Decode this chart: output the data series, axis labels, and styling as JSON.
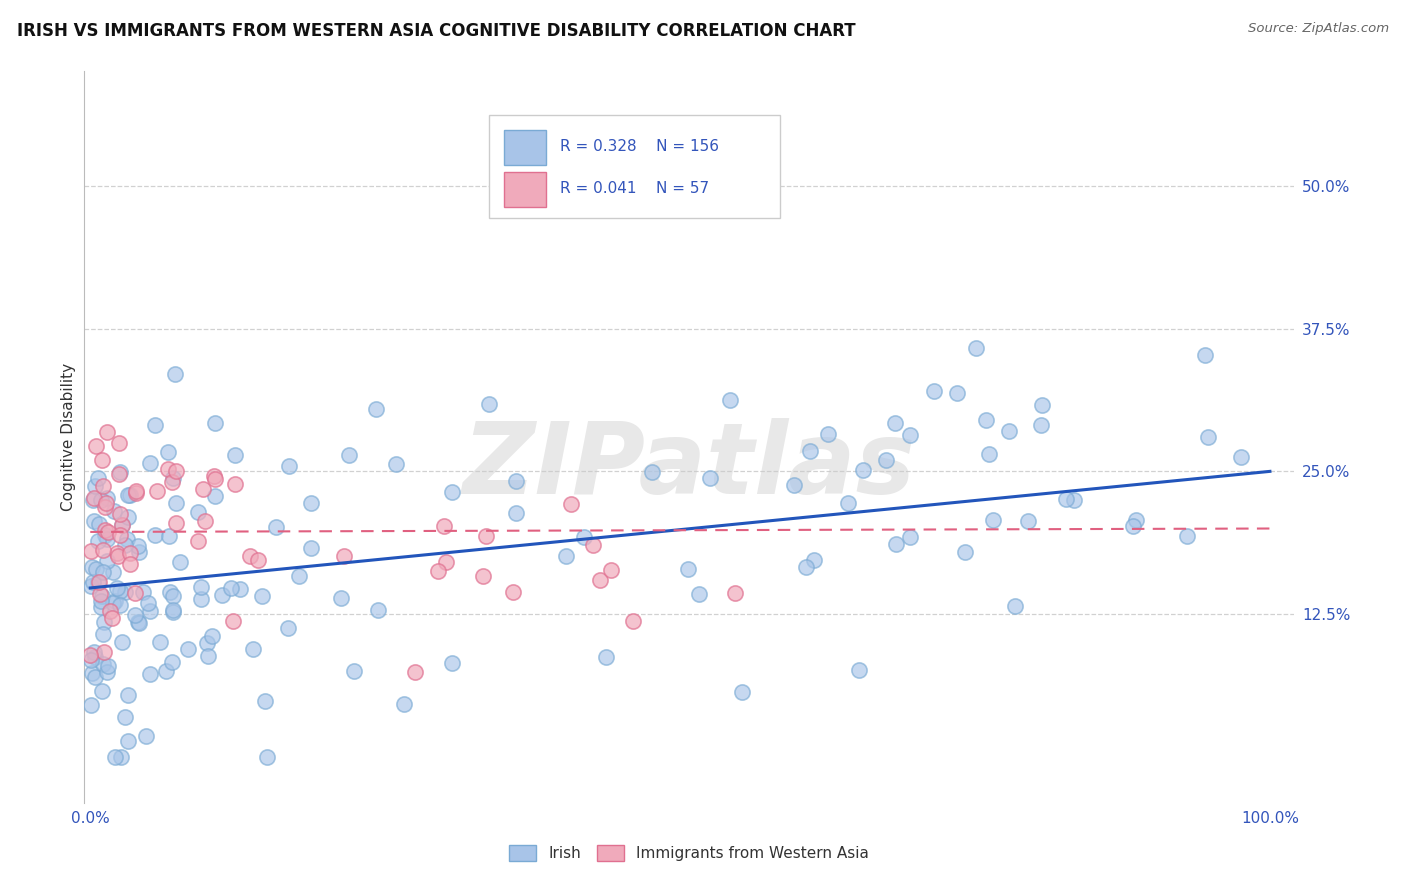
{
  "title": "IRISH VS IMMIGRANTS FROM WESTERN ASIA COGNITIVE DISABILITY CORRELATION CHART",
  "source": "Source: ZipAtlas.com",
  "ylabel": "Cognitive Disability",
  "watermark": "ZIPatlas",
  "legend_irish_R": 0.328,
  "legend_irish_N": 156,
  "legend_wa_R": 0.041,
  "legend_wa_N": 57,
  "irish_color": "#a8c4e8",
  "irish_edge_color": "#7aaad4",
  "western_asia_color": "#f0aabb",
  "western_asia_edge_color": "#e07090",
  "irish_line_color": "#2255bb",
  "western_asia_line_color": "#e06080",
  "background_color": "#ffffff",
  "grid_color": "#cccccc",
  "title_fontsize": 12,
  "axis_tick_color": "#3355bb",
  "ylabel_color": "#333333",
  "source_color": "#666666",
  "watermark_color": "#cccccc"
}
